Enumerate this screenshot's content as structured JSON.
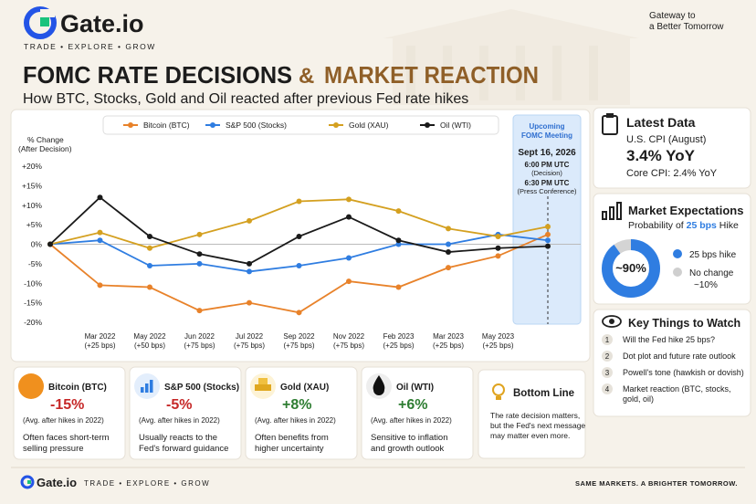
{
  "header": {
    "logo": "Gate.io",
    "tagline": "TRADE • EXPLORE • GROW",
    "slogan": [
      "Gateway to",
      "a Better Tomorrow"
    ],
    "title_main": "FOMC RATE DECISIONS",
    "title_amp": "&",
    "title_accent": "MARKET REACTION",
    "subtitle": "How BTC, Stocks, Gold and Oil reacted after previous Fed rate hikes"
  },
  "chart_data": {
    "type": "line",
    "y_label": [
      "% Change",
      "(After Decision)"
    ],
    "categories": [
      null,
      "Mar 2022",
      "May 2022",
      "Jun 2022",
      "Jul 2022",
      "Sep 2022",
      "Nov 2022",
      "Feb 2023",
      "Mar 2023",
      "May 2023",
      null
    ],
    "category_notes": [
      null,
      "(+25 bps)",
      "(+50 bps)",
      "(+75 bps)",
      "(+75 bps)",
      "(+75 bps)",
      "(+75 bps)",
      "(+25 bps)",
      "(+25 bps)",
      "(+25 bps)",
      null
    ],
    "series": [
      {
        "name": "Bitcoin (BTC)",
        "color": "#e8822a",
        "values": [
          0,
          -10.5,
          -11,
          -17,
          -15,
          -17.5,
          -9.5,
          -11,
          -6,
          -3,
          2.5
        ]
      },
      {
        "name": "S&P 500 (Stocks)",
        "color": "#2f7de1",
        "values": [
          0,
          1,
          -5.5,
          -5,
          -7,
          -5.5,
          -3.5,
          0,
          0,
          2.5,
          1
        ]
      },
      {
        "name": "Gold (XAU)",
        "color": "#d4a020",
        "values": [
          0,
          3,
          -1,
          2.5,
          6,
          11,
          11.5,
          8.5,
          4,
          2,
          4.5
        ]
      },
      {
        "name": "Oil (WTI)",
        "color": "#1a1a1a",
        "values": [
          0,
          12,
          2,
          -2.5,
          -5,
          2,
          7,
          1,
          -2,
          -1,
          -0.5
        ]
      }
    ],
    "ylim": [
      -20,
      20
    ],
    "yticks": [
      {
        "value": 20,
        "label": "+20%"
      },
      {
        "value": 15,
        "label": "+15%"
      },
      {
        "value": 10,
        "label": "+10%"
      },
      {
        "value": 5,
        "label": "+5%"
      },
      {
        "value": 0,
        "label": "0%"
      },
      {
        "value": -5,
        "label": "-5%"
      },
      {
        "value": -10,
        "label": "-10%"
      },
      {
        "value": -15,
        "label": "-15%"
      },
      {
        "value": -20,
        "label": "-20%"
      }
    ],
    "zero_line": true,
    "legend": "top",
    "highlight": {
      "title": [
        "Upcoming",
        "FOMC Meeting"
      ],
      "date": "Sept 16, 2026",
      "times": [
        "6:00 PM UTC",
        "(Decision)",
        "6:30 PM UTC",
        "(Press Conference)"
      ]
    }
  },
  "latest": {
    "title": "Latest Data",
    "cpi_label": "U.S. CPI (August)",
    "cpi": "3.4% YoY",
    "core": "Core CPI: 2.4% YoY"
  },
  "expectations": {
    "title": "Market Expectations",
    "prob_prefix": "Probability of ",
    "prob_highlight": "25 bps",
    "prob_suffix": " Hike",
    "hike": {
      "value": 90,
      "label": "~90%"
    },
    "hike_name": "25 bps hike",
    "no_change_name": "No change",
    "no_change": {
      "value": 10,
      "label": "~10%"
    }
  },
  "watch": {
    "title": "Key Things to Watch",
    "items": [
      {
        "num": "1",
        "lines": [
          "Will the Fed hike 25 bps?"
        ]
      },
      {
        "num": "2",
        "lines": [
          "Dot plot and future rate outlook"
        ]
      },
      {
        "num": "3",
        "lines": [
          "Powell's tone (hawkish or dovish)"
        ]
      },
      {
        "num": "4",
        "lines": [
          "Market reaction (BTC, stocks,",
          "gold, oil)"
        ]
      }
    ]
  },
  "cards": [
    {
      "name": "Bitcoin (BTC)",
      "change": "-15%",
      "color": "#c62828",
      "note": "(Avg. after hikes in 2022)",
      "desc": [
        "Often faces short-term",
        "selling pressure"
      ]
    },
    {
      "name": "S&P 500 (Stocks)",
      "change": "-5%",
      "color": "#c62828",
      "note": "(Avg. after hikes in 2022)",
      "desc": [
        "Usually reacts to the",
        "Fed's forward guidance"
      ]
    },
    {
      "name": "Gold (XAU)",
      "change": "+8%",
      "color": "#2e7d32",
      "note": "(Avg. after hikes in 2022)",
      "desc": [
        "Often benefits from",
        "higher uncertainty"
      ]
    },
    {
      "name": "Oil (WTI)",
      "change": "+6%",
      "color": "#2e7d32",
      "note": "(Avg. after hikes in 2022)",
      "desc": [
        "Sensitive to inflation",
        "and growth outlook"
      ]
    }
  ],
  "bottom_line": {
    "title": "Bottom Line",
    "text": [
      "The rate decision matters,",
      "but the Fed's next message",
      "may matter even more."
    ]
  },
  "footer": {
    "logo": "Gate.io",
    "tagline": "TRADE  •  EXPLORE  •  GROW",
    "motto": "SAME MARKETS. A BRIGHTER TOMORROW."
  }
}
